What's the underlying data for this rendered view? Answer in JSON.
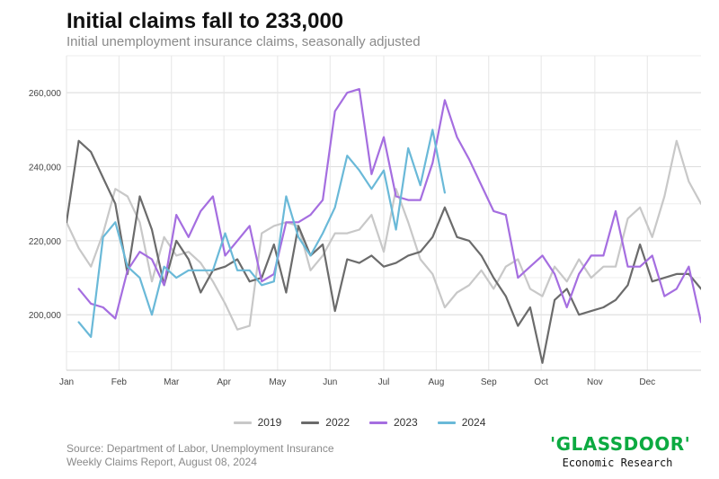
{
  "chart_data": {
    "type": "line",
    "title": "Initial claims fall to 233,000",
    "subtitle": "Initial unemployment insurance claims, seasonally adjusted",
    "xlabel": "",
    "ylabel": "",
    "x_ticks": [
      "Jan",
      "Feb",
      "Mar",
      "Apr",
      "May",
      "Jun",
      "Jul",
      "Aug",
      "Sep",
      "Oct",
      "Nov",
      "Dec"
    ],
    "xlim": [
      1,
      53
    ],
    "ylim": [
      185000,
      270000
    ],
    "y_ticks": [
      200000,
      220000,
      240000,
      260000
    ],
    "y_tick_labels": [
      "200,000",
      "220,000",
      "240,000",
      "260,000"
    ],
    "grid": true,
    "legend_position": "bottom",
    "series": [
      {
        "name": "2019",
        "color": "#c8c8c8",
        "x": [
          1,
          2,
          3,
          4,
          5,
          6,
          7,
          8,
          9,
          10,
          11,
          12,
          13,
          14,
          15,
          16,
          17,
          18,
          19,
          20,
          21,
          22,
          23,
          24,
          25,
          26,
          27,
          28,
          29,
          30,
          31,
          32,
          33,
          34,
          35,
          36,
          37,
          38,
          39,
          40,
          41,
          42,
          43,
          44,
          45,
          46,
          47,
          48,
          49,
          50,
          51,
          52,
          53
        ],
        "values": [
          225000,
          218000,
          213000,
          222000,
          234000,
          232000,
          225000,
          209000,
          221000,
          216000,
          217000,
          214000,
          209000,
          203000,
          196000,
          197000,
          222000,
          224000,
          225000,
          224000,
          212000,
          216000,
          222000,
          222000,
          223000,
          227000,
          217000,
          234000,
          225000,
          215000,
          211000,
          202000,
          206000,
          208000,
          212000,
          207000,
          213000,
          215000,
          207000,
          205000,
          213000,
          209000,
          215000,
          210000,
          213000,
          213000,
          226000,
          229000,
          221000,
          232000,
          247000,
          236000,
          230000
        ]
      },
      {
        "name": "2022",
        "color": "#6b6b6b",
        "x": [
          1,
          2,
          3,
          4,
          5,
          6,
          7,
          8,
          9,
          10,
          11,
          12,
          13,
          14,
          15,
          16,
          17,
          18,
          19,
          20,
          21,
          22,
          23,
          24,
          25,
          26,
          27,
          28,
          29,
          30,
          31,
          32,
          33,
          34,
          35,
          36,
          37,
          38,
          39,
          40,
          41,
          42,
          43,
          44,
          45,
          46,
          47,
          48,
          49,
          50,
          51,
          52,
          53
        ],
        "values": [
          225000,
          247000,
          244000,
          237000,
          230000,
          211000,
          232000,
          223000,
          208000,
          220000,
          215000,
          206000,
          212000,
          213000,
          215000,
          209000,
          210000,
          219000,
          206000,
          224000,
          216000,
          219000,
          201000,
          215000,
          214000,
          216000,
          213000,
          214000,
          216000,
          217000,
          221000,
          229000,
          221000,
          220000,
          216000,
          210000,
          205000,
          197000,
          202000,
          187000,
          204000,
          207000,
          200000,
          201000,
          202000,
          204000,
          208000,
          219000,
          209000,
          210000,
          211000,
          211000,
          207000
        ]
      },
      {
        "name": "2023",
        "color": "#a56ee0",
        "x": [
          2,
          3,
          4,
          5,
          6,
          7,
          8,
          9,
          10,
          11,
          12,
          13,
          14,
          15,
          16,
          17,
          18,
          19,
          20,
          21,
          22,
          23,
          24,
          25,
          26,
          27,
          28,
          29,
          30,
          31,
          32,
          33,
          34,
          35,
          36,
          37,
          38,
          39,
          40,
          41,
          42,
          43,
          44,
          45,
          46,
          47,
          48,
          49,
          50,
          51,
          52,
          53,
          54
        ],
        "values": [
          207000,
          203000,
          202000,
          199000,
          212000,
          217000,
          215000,
          208000,
          227000,
          221000,
          228000,
          232000,
          216000,
          220000,
          224000,
          209000,
          211000,
          225000,
          225000,
          227000,
          231000,
          255000,
          260000,
          261000,
          238000,
          248000,
          232000,
          231000,
          231000,
          241000,
          258000,
          248000,
          242000,
          235000,
          228000,
          227000,
          210000,
          213000,
          216000,
          211000,
          202000,
          211000,
          216000,
          216000,
          228000,
          213000,
          213000,
          216000,
          205000,
          207000,
          213000,
          198000,
          205000
        ]
      },
      {
        "name": "2024",
        "color": "#6ab9d8",
        "x": [
          2,
          3,
          4,
          5,
          6,
          7,
          8,
          9,
          10,
          11,
          12,
          13,
          14,
          15,
          16,
          17,
          18,
          19,
          20,
          21,
          22,
          23,
          24,
          25,
          26,
          27,
          28,
          29,
          30,
          31,
          32
        ],
        "values": [
          198000,
          194000,
          221000,
          225000,
          213000,
          210000,
          200000,
          213000,
          210000,
          212000,
          212000,
          212000,
          222000,
          212000,
          212000,
          208000,
          209000,
          232000,
          221000,
          216000,
          222000,
          229000,
          243000,
          239000,
          234000,
          239000,
          223000,
          245000,
          235000,
          250000,
          233000
        ]
      }
    ]
  },
  "source_text_line1": "Source: Department of Labor, Unemployment Insurance",
  "source_text_line2": "Weekly Claims Report, August 08, 2024",
  "brand": {
    "logo": "'GLASSDOOR'",
    "subtitle": "Economic Research"
  }
}
